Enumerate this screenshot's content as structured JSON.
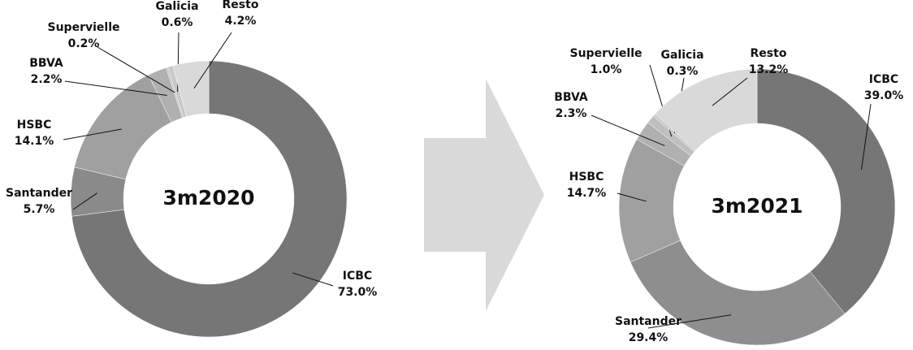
{
  "chart_data": [
    {
      "type": "donut",
      "title": "3m2020",
      "categories": [
        "ICBC",
        "Santander",
        "HSBC",
        "BBVA",
        "Supervielle",
        "Galicia",
        "Resto"
      ],
      "values": [
        73.0,
        5.7,
        14.1,
        2.2,
        0.2,
        0.6,
        4.2
      ],
      "value_labels": [
        "73.0%",
        "5.7%",
        "14.1%",
        "2.2%",
        "0.2%",
        "0.6%",
        "4.2%"
      ],
      "colors": [
        "#767676",
        "#8a8a8a",
        "#a0a0a0",
        "#b0b0b0",
        "#bfbfbf",
        "#c8c8c8",
        "#d9d9d9"
      ]
    },
    {
      "type": "donut",
      "title": "3m2021",
      "categories": [
        "ICBC",
        "Santander",
        "HSBC",
        "BBVA",
        "Supervielle",
        "Galicia",
        "Resto"
      ],
      "values": [
        39.0,
        29.4,
        14.7,
        2.3,
        1.0,
        0.3,
        13.2
      ],
      "value_labels": [
        "39.0%",
        "29.4%",
        "14.7%",
        "2.3%",
        "1.0%",
        "0.3%",
        "13.2%"
      ],
      "colors": [
        "#767676",
        "#8e8e8e",
        "#a0a0a0",
        "#b0b0b0",
        "#bfbfbf",
        "#c8c8c8",
        "#d9d9d9"
      ]
    }
  ]
}
